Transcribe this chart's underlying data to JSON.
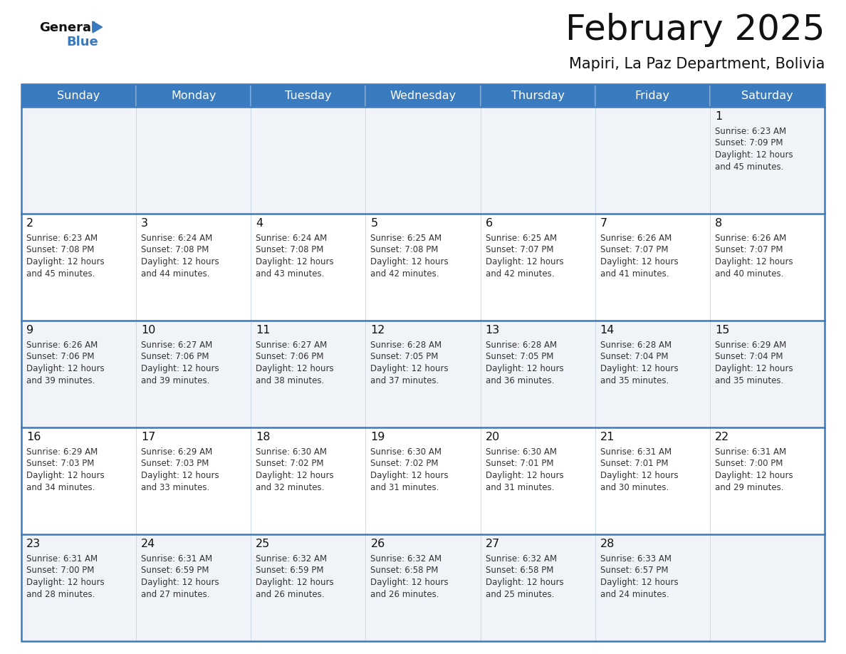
{
  "title": "February 2025",
  "subtitle": "Mapiri, La Paz Department, Bolivia",
  "header_color": "#3a7bbf",
  "header_text_color": "#ffffff",
  "odd_row_bg": "#f0f3f7",
  "even_row_bg": "#ffffff",
  "border_color": "#3a7bbf",
  "cell_border_color": "#c8d8e8",
  "day_headers": [
    "Sunday",
    "Monday",
    "Tuesday",
    "Wednesday",
    "Thursday",
    "Friday",
    "Saturday"
  ],
  "title_color": "#111111",
  "subtitle_color": "#111111",
  "day_num_color": "#111111",
  "info_color": "#333333",
  "logo_general_color": "#111111",
  "logo_blue_color": "#3a7bbf",
  "weeks": [
    [
      {
        "day": null
      },
      {
        "day": null
      },
      {
        "day": null
      },
      {
        "day": null
      },
      {
        "day": null
      },
      {
        "day": null
      },
      {
        "day": 1,
        "sunrise": "6:23 AM",
        "sunset": "7:09 PM",
        "daylight_min": "and 45 minutes."
      }
    ],
    [
      {
        "day": 2,
        "sunrise": "6:23 AM",
        "sunset": "7:08 PM",
        "daylight_min": "and 45 minutes."
      },
      {
        "day": 3,
        "sunrise": "6:24 AM",
        "sunset": "7:08 PM",
        "daylight_min": "and 44 minutes."
      },
      {
        "day": 4,
        "sunrise": "6:24 AM",
        "sunset": "7:08 PM",
        "daylight_min": "and 43 minutes."
      },
      {
        "day": 5,
        "sunrise": "6:25 AM",
        "sunset": "7:08 PM",
        "daylight_min": "and 42 minutes."
      },
      {
        "day": 6,
        "sunrise": "6:25 AM",
        "sunset": "7:07 PM",
        "daylight_min": "and 42 minutes."
      },
      {
        "day": 7,
        "sunrise": "6:26 AM",
        "sunset": "7:07 PM",
        "daylight_min": "and 41 minutes."
      },
      {
        "day": 8,
        "sunrise": "6:26 AM",
        "sunset": "7:07 PM",
        "daylight_min": "and 40 minutes."
      }
    ],
    [
      {
        "day": 9,
        "sunrise": "6:26 AM",
        "sunset": "7:06 PM",
        "daylight_min": "and 39 minutes."
      },
      {
        "day": 10,
        "sunrise": "6:27 AM",
        "sunset": "7:06 PM",
        "daylight_min": "and 39 minutes."
      },
      {
        "day": 11,
        "sunrise": "6:27 AM",
        "sunset": "7:06 PM",
        "daylight_min": "and 38 minutes."
      },
      {
        "day": 12,
        "sunrise": "6:28 AM",
        "sunset": "7:05 PM",
        "daylight_min": "and 37 minutes."
      },
      {
        "day": 13,
        "sunrise": "6:28 AM",
        "sunset": "7:05 PM",
        "daylight_min": "and 36 minutes."
      },
      {
        "day": 14,
        "sunrise": "6:28 AM",
        "sunset": "7:04 PM",
        "daylight_min": "and 35 minutes."
      },
      {
        "day": 15,
        "sunrise": "6:29 AM",
        "sunset": "7:04 PM",
        "daylight_min": "and 35 minutes."
      }
    ],
    [
      {
        "day": 16,
        "sunrise": "6:29 AM",
        "sunset": "7:03 PM",
        "daylight_min": "and 34 minutes."
      },
      {
        "day": 17,
        "sunrise": "6:29 AM",
        "sunset": "7:03 PM",
        "daylight_min": "and 33 minutes."
      },
      {
        "day": 18,
        "sunrise": "6:30 AM",
        "sunset": "7:02 PM",
        "daylight_min": "and 32 minutes."
      },
      {
        "day": 19,
        "sunrise": "6:30 AM",
        "sunset": "7:02 PM",
        "daylight_min": "and 31 minutes."
      },
      {
        "day": 20,
        "sunrise": "6:30 AM",
        "sunset": "7:01 PM",
        "daylight_min": "and 31 minutes."
      },
      {
        "day": 21,
        "sunrise": "6:31 AM",
        "sunset": "7:01 PM",
        "daylight_min": "and 30 minutes."
      },
      {
        "day": 22,
        "sunrise": "6:31 AM",
        "sunset": "7:00 PM",
        "daylight_min": "and 29 minutes."
      }
    ],
    [
      {
        "day": 23,
        "sunrise": "6:31 AM",
        "sunset": "7:00 PM",
        "daylight_min": "and 28 minutes."
      },
      {
        "day": 24,
        "sunrise": "6:31 AM",
        "sunset": "6:59 PM",
        "daylight_min": "and 27 minutes."
      },
      {
        "day": 25,
        "sunrise": "6:32 AM",
        "sunset": "6:59 PM",
        "daylight_min": "and 26 minutes."
      },
      {
        "day": 26,
        "sunrise": "6:32 AM",
        "sunset": "6:58 PM",
        "daylight_min": "and 26 minutes."
      },
      {
        "day": 27,
        "sunrise": "6:32 AM",
        "sunset": "6:58 PM",
        "daylight_min": "and 25 minutes."
      },
      {
        "day": 28,
        "sunrise": "6:33 AM",
        "sunset": "6:57 PM",
        "daylight_min": "and 24 minutes."
      },
      {
        "day": null
      }
    ]
  ]
}
